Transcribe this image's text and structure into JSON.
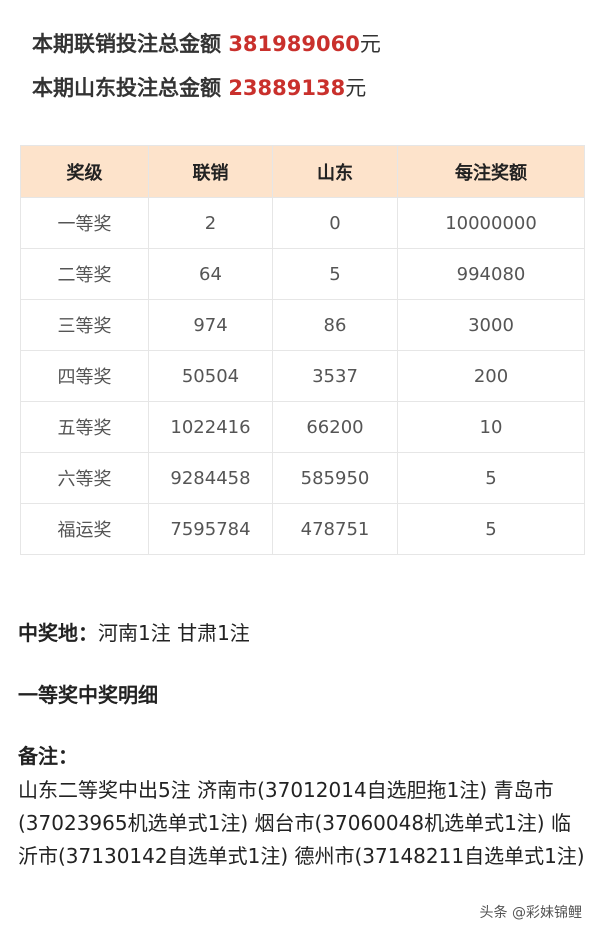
{
  "summary": [
    {
      "label": "本期联销投注总金额 ",
      "amount": "381989060",
      "unit": "元"
    },
    {
      "label": "本期山东投注总金额 ",
      "amount": "23889138",
      "unit": "元"
    }
  ],
  "table": {
    "headers": [
      "奖级",
      "联销",
      "山东",
      "每注奖额"
    ],
    "rows": [
      [
        "一等奖",
        "2",
        "0",
        "10000000"
      ],
      [
        "二等奖",
        "64",
        "5",
        "994080"
      ],
      [
        "三等奖",
        "974",
        "86",
        "3000"
      ],
      [
        "四等奖",
        "50504",
        "3537",
        "200"
      ],
      [
        "五等奖",
        "1022416",
        "66200",
        "10"
      ],
      [
        "六等奖",
        "9284458",
        "585950",
        "5"
      ],
      [
        "福运奖",
        "7595784",
        "478751",
        "5"
      ]
    ]
  },
  "winning_place": {
    "label": "中奖地：",
    "value": "河南1注 甘肃1注"
  },
  "first_prize_detail": "一等奖中奖明细",
  "note": {
    "label": "备注：",
    "text": "山东二等奖中出5注 济南市(37012014自选胆拖1注) 青岛市(37023965机选单式1注) 烟台市(37060048机选单式1注) 临沂市(37130142自选单式1注) 德州市(37148211自选单式1注)"
  },
  "watermark": "头条 @彩妹锦鲤",
  "colors": {
    "amount": "#c9302c",
    "header_bg": "#fde3cb"
  }
}
